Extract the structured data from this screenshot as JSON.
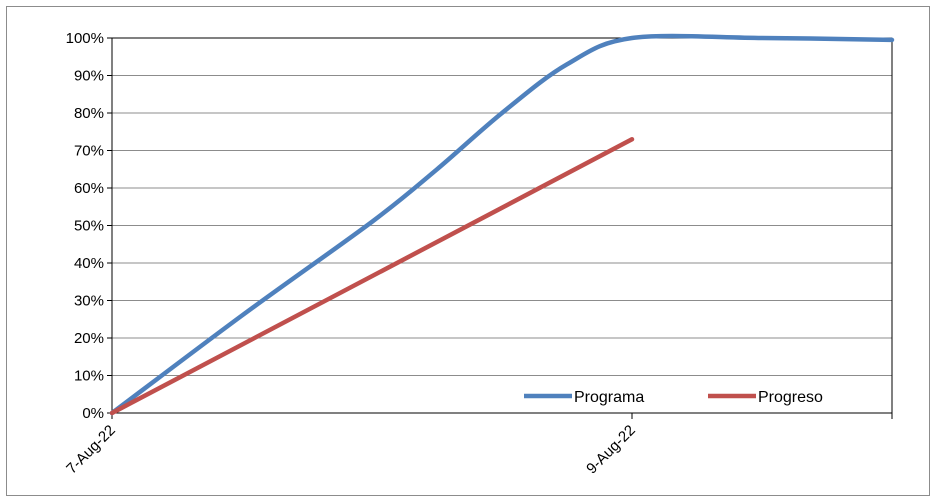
{
  "chart_data": {
    "type": "line",
    "title": "",
    "xlabel": "",
    "ylabel": "",
    "x_ticks": [
      "7-Aug-22",
      "9-Aug-22"
    ],
    "x_range": [
      "7-Aug-22",
      "10-Aug-22"
    ],
    "ylim": [
      0,
      1
    ],
    "y_ticks": [
      "0%",
      "10%",
      "20%",
      "30%",
      "40%",
      "50%",
      "60%",
      "70%",
      "80%",
      "90%",
      "100%"
    ],
    "grid": "horizontal",
    "legend_position": "bottom-right",
    "series": [
      {
        "name": "Programa",
        "color": "#4f81bd",
        "points": [
          [
            "7-Aug-22 00:00",
            0.0
          ],
          [
            "7-Aug-22 12:00",
            0.26
          ],
          [
            "8-Aug-22 00:00",
            0.51
          ],
          [
            "8-Aug-22 06:00",
            0.65
          ],
          [
            "8-Aug-22 12:00",
            0.8
          ],
          [
            "8-Aug-22 18:00",
            0.93
          ],
          [
            "9-Aug-22 00:00",
            1.0
          ],
          [
            "9-Aug-22 12:00",
            1.0
          ],
          [
            "10-Aug-22 00:00",
            0.995
          ]
        ]
      },
      {
        "name": "Progreso",
        "color": "#c0504d",
        "points": [
          [
            "7-Aug-22 00:00",
            0.0
          ],
          [
            "9-Aug-22 00:00",
            0.73
          ]
        ]
      }
    ]
  }
}
